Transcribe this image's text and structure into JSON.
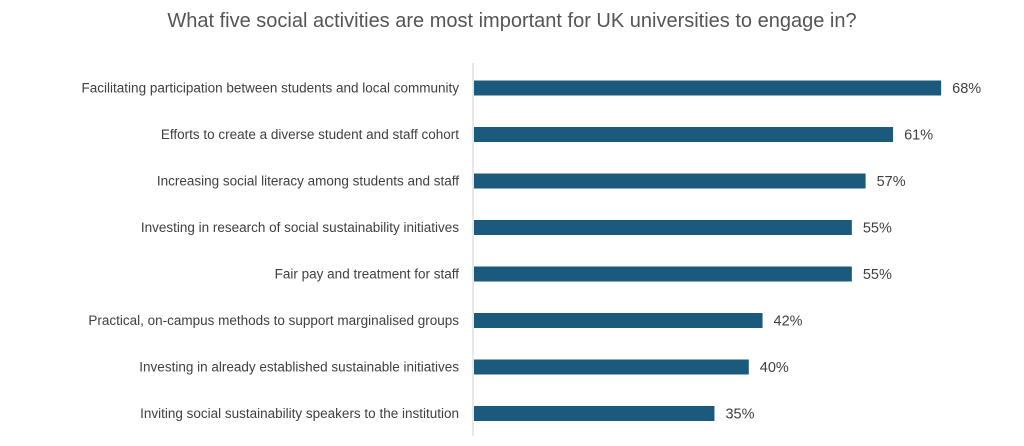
{
  "chart_data": {
    "type": "bar",
    "orientation": "horizontal",
    "title": "What five social activities are most important for UK universities to engage in?",
    "categories": [
      "Facilitating participation between students and local community",
      "Efforts to create a diverse student and staff cohort",
      "Increasing social literacy among students and staff",
      "Investing in research of social sustainability initiatives",
      "Fair pay and treatment for staff",
      "Practical, on-campus methods to support marginalised groups",
      "Investing in already established sustainable initiatives",
      "Inviting social sustainability speakers to the institution"
    ],
    "values": [
      68,
      61,
      57,
      55,
      55,
      42,
      40,
      35
    ],
    "value_labels": [
      "68%",
      "61%",
      "57%",
      "55%",
      "55%",
      "42%",
      "40%",
      "35%"
    ],
    "xlabel": "",
    "ylabel": "",
    "xlim": [
      0,
      100
    ],
    "grid": false,
    "legend": "none",
    "bar_color": "#1c5a7d"
  }
}
